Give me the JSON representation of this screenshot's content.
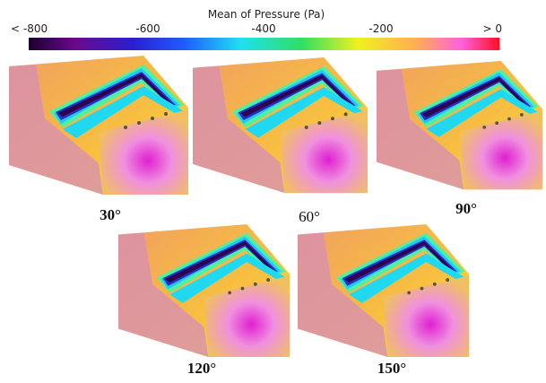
{
  "colorbar": {
    "title": "Mean of Pressure (Pa)",
    "ticks": [
      "< -800",
      "-600",
      "-400",
      "-200",
      "> 0"
    ]
  },
  "panels": [
    {
      "label": "30°"
    },
    {
      "label": "60°"
    },
    {
      "label": "90°"
    },
    {
      "label": "120°"
    },
    {
      "label": "150°"
    }
  ]
}
